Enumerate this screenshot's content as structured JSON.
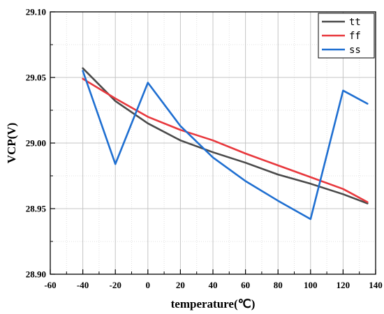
{
  "chart_data": {
    "type": "line",
    "title": "",
    "xlabel": "temperature(℃)",
    "ylabel": "VCP(V)",
    "xlim": [
      -60,
      140
    ],
    "ylim": [
      28.9,
      29.1
    ],
    "xticks": [
      "-60",
      "-40",
      "-20",
      "0",
      "20",
      "40",
      "60",
      "80",
      "100",
      "120",
      "140"
    ],
    "yticks": [
      "28.90",
      "28.95",
      "29.00",
      "29.05",
      "29.10"
    ],
    "grid": true,
    "legend_position": "top-right",
    "series": [
      {
        "name": "tt",
        "color": "#4a4a4a",
        "x": [
          -40,
          -20,
          0,
          20,
          40,
          60,
          80,
          100,
          120,
          135
        ],
        "y": [
          29.057,
          29.032,
          29.015,
          29.002,
          28.993,
          28.985,
          28.976,
          28.969,
          28.961,
          28.954
        ]
      },
      {
        "name": "ff",
        "color": "#e8383d",
        "x": [
          -40,
          -20,
          0,
          20,
          40,
          60,
          80,
          100,
          120,
          135
        ],
        "y": [
          29.049,
          29.034,
          29.02,
          29.01,
          29.002,
          28.992,
          28.983,
          28.974,
          28.965,
          28.955
        ]
      },
      {
        "name": "ss",
        "color": "#1f6fd1",
        "x": [
          -40,
          -20,
          0,
          20,
          40,
          60,
          80,
          100,
          120,
          135
        ],
        "y": [
          29.055,
          28.984,
          29.046,
          29.013,
          28.989,
          28.971,
          28.956,
          28.942,
          29.04,
          29.03
        ]
      }
    ]
  }
}
